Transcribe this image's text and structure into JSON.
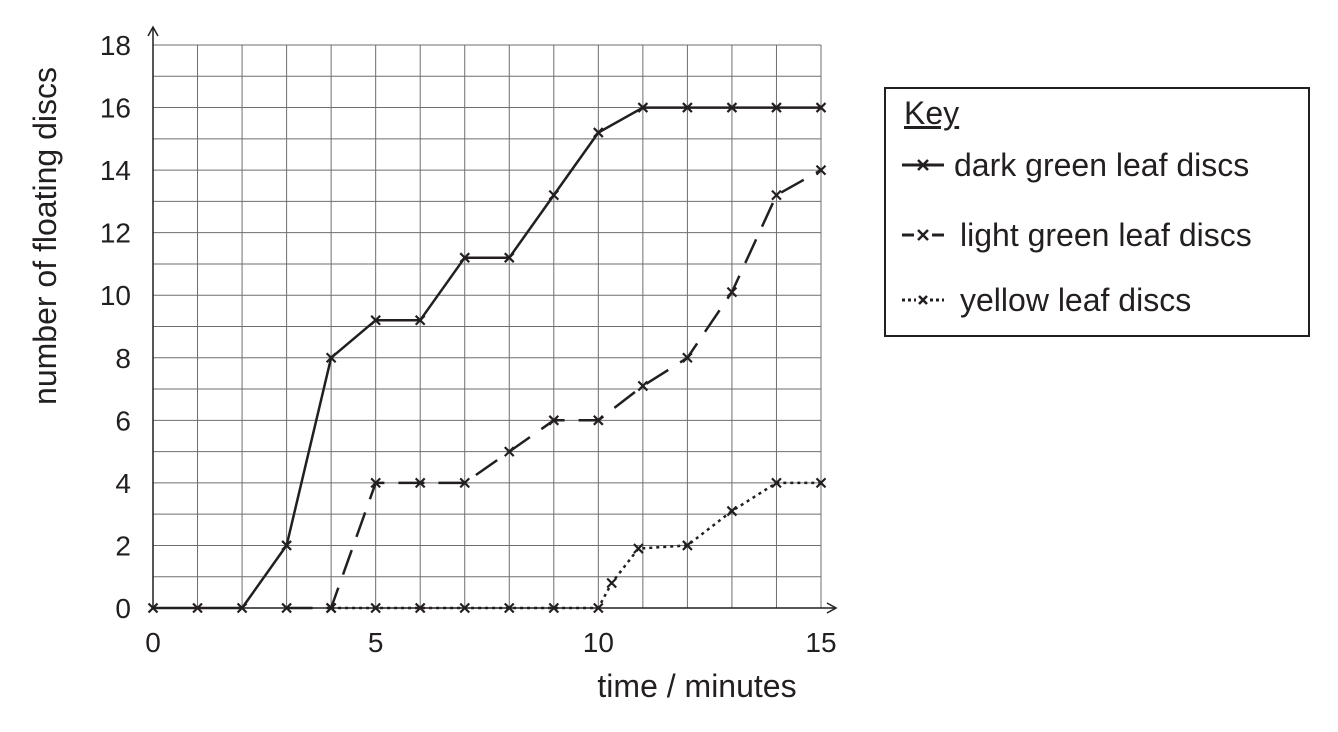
{
  "chart_data": {
    "type": "line",
    "xlabel": "time / minutes",
    "ylabel": "number of floating discs",
    "xlim": [
      0,
      15
    ],
    "ylim": [
      0,
      18
    ],
    "xticks": [
      0,
      5,
      10,
      15
    ],
    "yticks": [
      0,
      2,
      4,
      6,
      8,
      10,
      12,
      14,
      16,
      18
    ],
    "grid": true,
    "legend_title": "Key",
    "legend_placement": "right",
    "series": [
      {
        "name": "dark green leaf discs",
        "style": "solid",
        "x": [
          0,
          1,
          2,
          3,
          4,
          5,
          6,
          7,
          8,
          9,
          10,
          11,
          12,
          13,
          14,
          15
        ],
        "y": [
          0,
          0,
          0,
          2,
          8,
          9.2,
          9.2,
          11.2,
          11.2,
          13.2,
          15.2,
          16,
          16,
          16,
          16,
          16
        ]
      },
      {
        "name": "light green leaf discs",
        "style": "dashed",
        "x": [
          3,
          4,
          5,
          6,
          7,
          8,
          9,
          10,
          11,
          12,
          13,
          14,
          15
        ],
        "y": [
          0,
          0,
          4,
          4,
          4,
          5,
          6,
          6,
          7.1,
          8,
          10.1,
          13.2,
          14
        ]
      },
      {
        "name": "yellow leaf discs",
        "style": "dotted",
        "x": [
          4,
          5,
          6,
          7,
          8,
          9,
          10,
          10.3,
          10.9,
          12,
          13,
          14,
          15
        ],
        "y": [
          0,
          0,
          0,
          0,
          0,
          0,
          0,
          0.8,
          1.9,
          2,
          3.1,
          4,
          4
        ]
      }
    ]
  }
}
